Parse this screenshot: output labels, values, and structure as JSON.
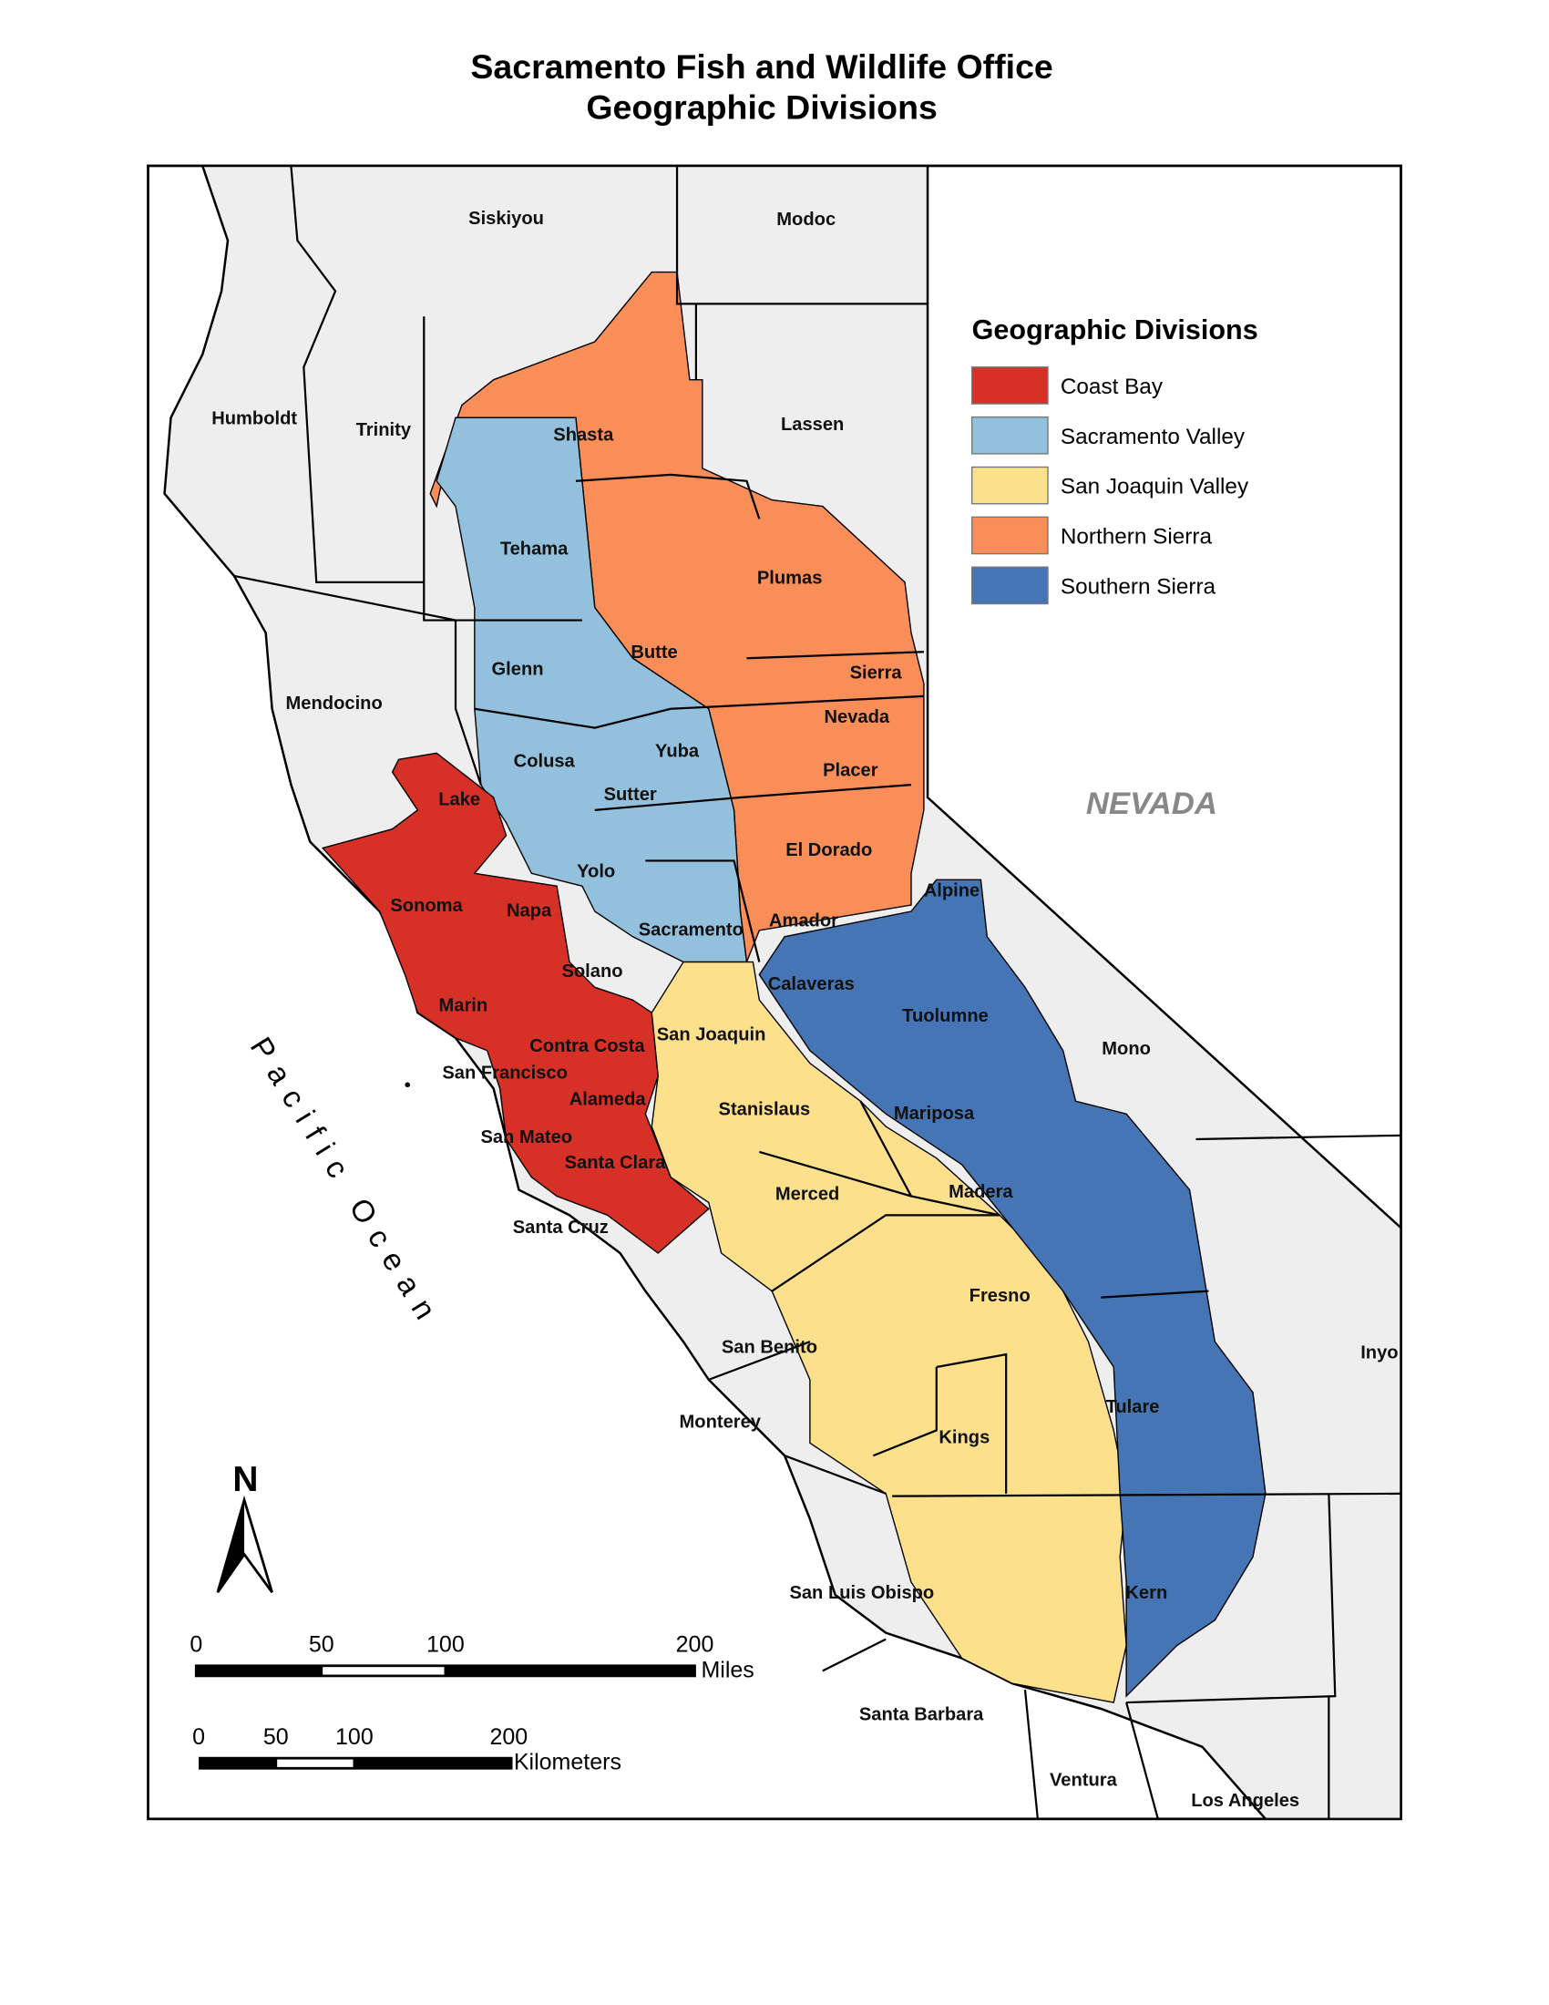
{
  "title": {
    "line1": "Sacramento Fish and Wildlife Office",
    "line2": "Geographic Divisions"
  },
  "legend": {
    "title": "Geographic Divisions",
    "items": [
      {
        "label": "Coast Bay",
        "color": "#d73027"
      },
      {
        "label": "Sacramento Valley",
        "color": "#92c0dd"
      },
      {
        "label": "San Joaquin Valley",
        "color": "#fde08b"
      },
      {
        "label": "Northern Sierra",
        "color": "#f98e58"
      },
      {
        "label": "Southern Sierra",
        "color": "#4575b4"
      }
    ]
  },
  "background_color": "#eeeeee",
  "state_label": "NEVADA",
  "ocean_label": "Pacific Ocean",
  "north_arrow": "N",
  "scale_miles": {
    "ticks": [
      "0",
      "50",
      "100",
      "200"
    ],
    "unit": "Miles"
  },
  "scale_km": {
    "ticks": [
      "0",
      "50",
      "100",
      "200"
    ],
    "unit": "Kilometers"
  },
  "counties": [
    "Siskiyou",
    "Modoc",
    "Humboldt",
    "Trinity",
    "Shasta",
    "Lassen",
    "Tehama",
    "Plumas",
    "Glenn",
    "Butte",
    "Sierra",
    "Mendocino",
    "Nevada",
    "Yuba",
    "Colusa",
    "Placer",
    "Sutter",
    "Lake",
    "El Dorado",
    "Yolo",
    "Alpine",
    "Sonoma",
    "Napa",
    "Amador",
    "Sacramento",
    "Solano",
    "Calaveras",
    "Marin",
    "Tuolumne",
    "San Joaquin",
    "Contra Costa",
    "Mono",
    "San Francisco",
    "Alameda",
    "Mariposa",
    "Stanislaus",
    "San Mateo",
    "Santa Clara",
    "Madera",
    "Merced",
    "Santa Cruz",
    "Fresno",
    "San Benito",
    "Inyo",
    "Tulare",
    "Monterey",
    "Kings",
    "Kern",
    "San Luis Obispo",
    "Santa Barbara",
    "Ventura",
    "Los Angeles"
  ]
}
